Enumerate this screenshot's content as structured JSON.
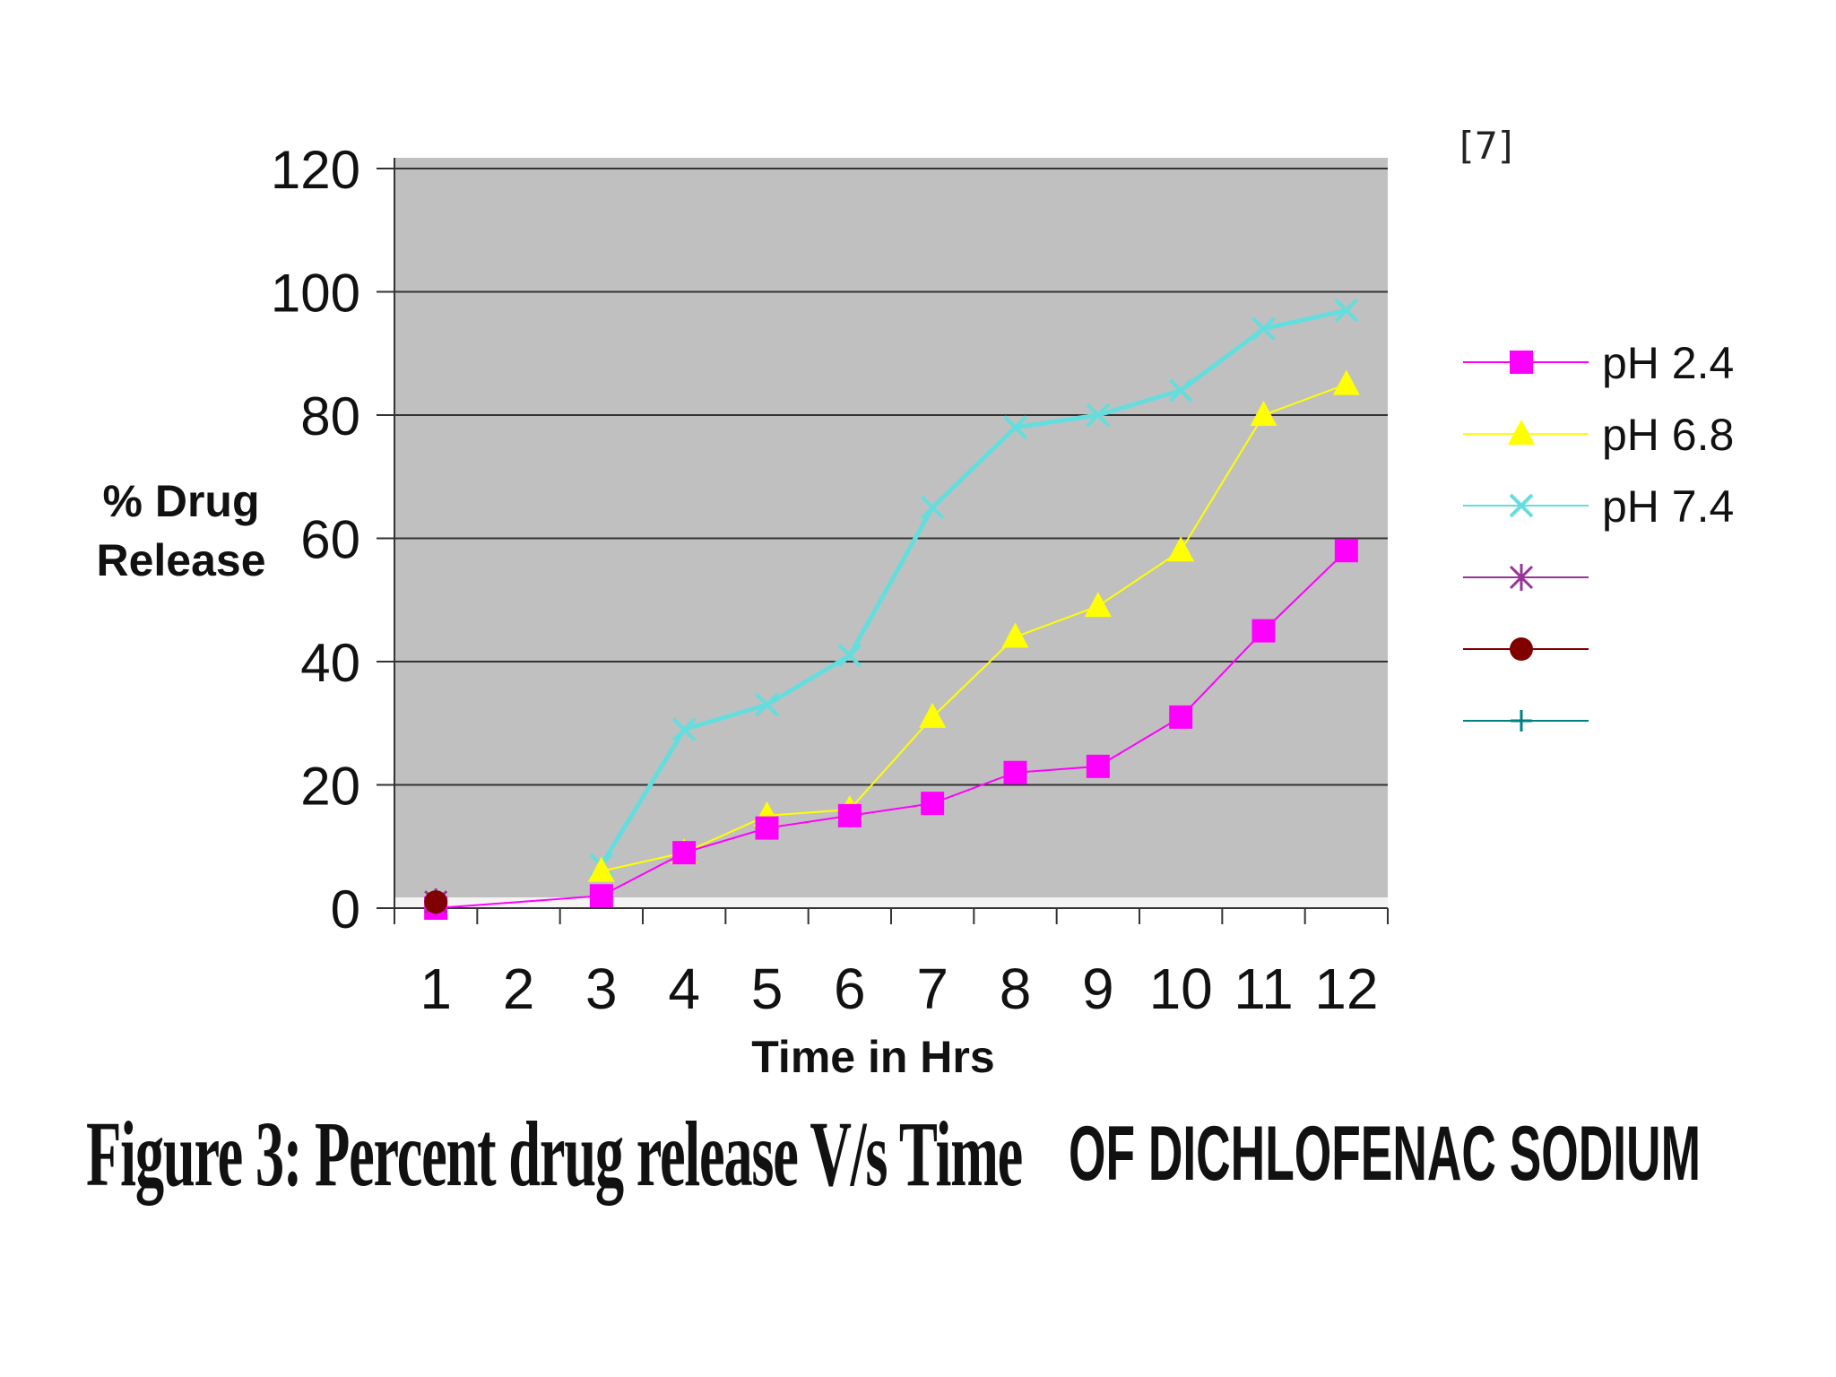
{
  "reference": "[7]",
  "caption": {
    "main": "Figure 3: Percent drug release V/s Time",
    "sub": "OF DICHLOFENAC SODIUM"
  },
  "chart_data": {
    "type": "line",
    "xlabel": "Time in Hrs",
    "ylabel_lines": [
      "% Drug",
      "Release"
    ],
    "x": [
      1,
      2,
      3,
      4,
      5,
      6,
      7,
      8,
      9,
      10,
      11,
      12
    ],
    "ylim": [
      0,
      120
    ],
    "yticks": [
      0,
      20,
      40,
      60,
      80,
      100,
      120
    ],
    "grid": true,
    "legend_position": "right",
    "plot_background": "#c0c0c0",
    "series": [
      {
        "name": "pH 2.4",
        "color": "#ff00ff",
        "marker": "square",
        "values": [
          0,
          null,
          2,
          9,
          13,
          15,
          17,
          22,
          23,
          31,
          45,
          58
        ]
      },
      {
        "name": "pH 6.8",
        "color": "#ffff00",
        "marker": "triangle",
        "values": [
          null,
          null,
          6,
          9,
          15,
          16,
          31,
          44,
          49,
          58,
          80,
          85
        ]
      },
      {
        "name": "pH 7.4",
        "color": "#66dddd",
        "marker": "x",
        "values": [
          null,
          null,
          7,
          29,
          33,
          41,
          65,
          78,
          80,
          84,
          94,
          97
        ]
      },
      {
        "name": "",
        "color": "#993399",
        "marker": "asterisk",
        "values": [
          1,
          null,
          null,
          null,
          null,
          null,
          null,
          null,
          null,
          null,
          null,
          null
        ]
      },
      {
        "name": "",
        "color": "#800000",
        "marker": "circle",
        "values": [
          1,
          null,
          null,
          null,
          null,
          null,
          null,
          null,
          null,
          null,
          null,
          null
        ]
      },
      {
        "name": "",
        "color": "#008080",
        "marker": "plus",
        "values": [
          null,
          null,
          null,
          null,
          null,
          null,
          null,
          null,
          null,
          null,
          null,
          null
        ]
      }
    ]
  }
}
